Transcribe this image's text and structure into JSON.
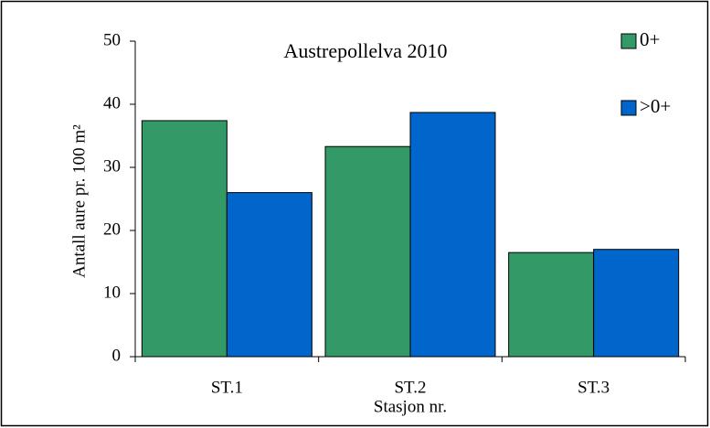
{
  "chart_data": {
    "type": "bar",
    "title": "Austrepollelva 2010",
    "x_label": "Stasjon nr.",
    "y_label": "Antall aure pr. 100 m²",
    "categories": [
      "ST.1",
      "ST.2",
      "ST.3"
    ],
    "series": [
      {
        "name": "0+",
        "color": "#339966",
        "values": [
          37.4,
          33.3,
          16.5
        ]
      },
      {
        "name": ">0+",
        "color": "#0066cc",
        "values": [
          26,
          38.7,
          17
        ]
      }
    ],
    "ylim": [
      0,
      50
    ],
    "yticks": [
      0,
      10,
      20,
      30,
      40,
      50
    ],
    "grid": false,
    "legend": "top-right"
  }
}
